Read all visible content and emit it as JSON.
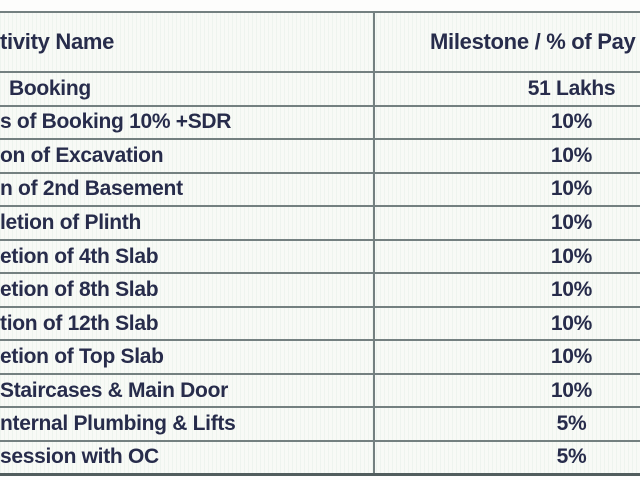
{
  "table": {
    "columns": {
      "activity": "tivity Name",
      "milestone": "Milestone / % of Pay"
    },
    "rows": [
      {
        "activity": "Booking",
        "milestone": "51 Lakhs"
      },
      {
        "activity": "s of Booking 10% +SDR",
        "milestone": "10%"
      },
      {
        "activity": "on of Excavation",
        "milestone": "10%"
      },
      {
        "activity": "n of 2nd Basement",
        "milestone": "10%"
      },
      {
        "activity": "letion of Plinth",
        "milestone": "10%"
      },
      {
        "activity": "etion of 4th Slab",
        "milestone": "10%"
      },
      {
        "activity": "etion of 8th Slab",
        "milestone": "10%"
      },
      {
        "activity": "tion of 12th Slab",
        "milestone": "10%"
      },
      {
        "activity": "etion of Top Slab",
        "milestone": "10%"
      },
      {
        "activity": "Staircases & Main Door",
        "milestone": "10%"
      },
      {
        "activity": "nternal Plumbing & Lifts",
        "milestone": "5%"
      },
      {
        "activity": "session with OC",
        "milestone": "5%"
      }
    ]
  },
  "colors": {
    "text": "#272c4b",
    "border": "#748080",
    "border_heavy": "#515d5d",
    "cell_bg": "#f8faf6",
    "page_bg": "#fdfdfc"
  }
}
